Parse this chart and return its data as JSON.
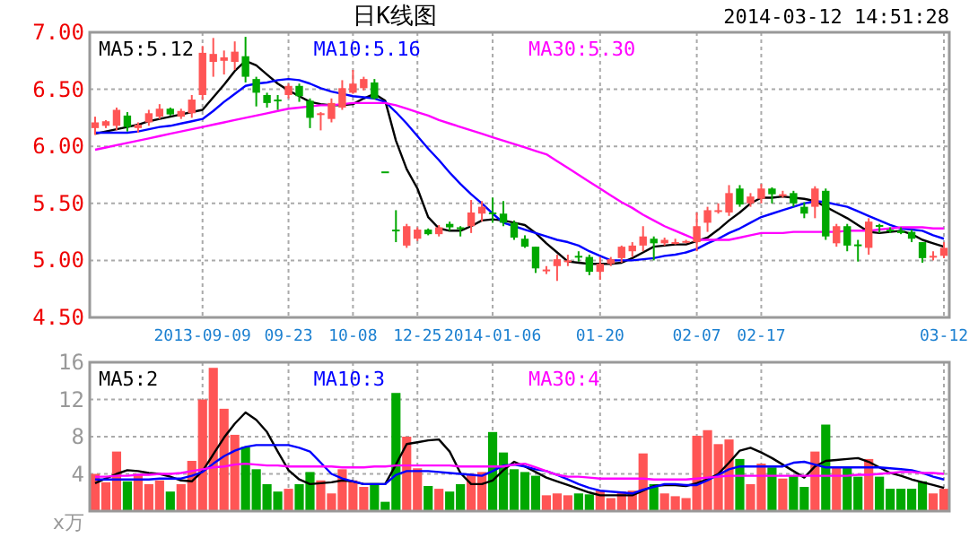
{
  "chart_data": [
    {
      "type": "candlestick",
      "title": "日K线图",
      "annotations": [
        "2014-03-12 14:51:28"
      ],
      "categories": [
        null,
        null,
        null,
        null,
        null,
        null,
        null,
        null,
        null,
        null,
        "2013-09-09",
        null,
        null,
        null,
        null,
        null,
        null,
        null,
        "09-23",
        null,
        null,
        null,
        null,
        null,
        "10-08",
        null,
        null,
        null,
        null,
        null,
        "12-25",
        null,
        null,
        null,
        null,
        null,
        null,
        "2014-01-06",
        null,
        null,
        null,
        null,
        null,
        null,
        null,
        null,
        null,
        "01-20",
        null,
        null,
        null,
        null,
        null,
        null,
        null,
        null,
        "02-07",
        null,
        null,
        null,
        null,
        null,
        "02-17",
        null,
        null,
        null,
        null,
        null,
        null,
        null,
        null,
        null,
        null,
        null,
        null,
        null,
        null,
        null,
        null,
        "03-12"
      ],
      "ohlc": [
        [
          6.16,
          6.26,
          6.1,
          6.21
        ],
        [
          6.18,
          6.23,
          6.16,
          6.22
        ],
        [
          6.18,
          6.34,
          6.14,
          6.32
        ],
        [
          6.27,
          6.3,
          6.13,
          6.17
        ],
        [
          6.16,
          6.21,
          6.12,
          6.19
        ],
        [
          6.21,
          6.32,
          6.18,
          6.29
        ],
        [
          6.26,
          6.37,
          6.24,
          6.33
        ],
        [
          6.33,
          6.34,
          6.27,
          6.28
        ],
        [
          6.26,
          6.33,
          6.24,
          6.31
        ],
        [
          6.29,
          6.45,
          6.25,
          6.41
        ],
        [
          6.45,
          6.88,
          6.41,
          6.82
        ],
        [
          6.74,
          6.95,
          6.61,
          6.81
        ],
        [
          6.75,
          6.84,
          6.63,
          6.78
        ],
        [
          6.74,
          6.92,
          6.67,
          6.83
        ],
        [
          6.79,
          6.96,
          6.56,
          6.61
        ],
        [
          6.59,
          6.61,
          6.35,
          6.47
        ],
        [
          6.45,
          6.47,
          6.34,
          6.38
        ],
        [
          6.41,
          6.45,
          6.32,
          6.4
        ],
        [
          6.45,
          6.55,
          6.42,
          6.53
        ],
        [
          6.53,
          6.55,
          6.39,
          6.44
        ],
        [
          6.4,
          6.42,
          6.16,
          6.25
        ],
        [
          6.28,
          6.3,
          6.14,
          6.29
        ],
        [
          6.24,
          6.42,
          6.21,
          6.38
        ],
        [
          6.34,
          6.58,
          6.32,
          6.51
        ],
        [
          6.47,
          6.67,
          6.46,
          6.55
        ],
        [
          6.51,
          6.61,
          6.49,
          6.59
        ],
        [
          6.56,
          6.59,
          6.41,
          6.42
        ],
        [
          5.78,
          5.78,
          5.78,
          5.78
        ],
        [
          5.27,
          5.44,
          5.16,
          5.26
        ],
        [
          5.13,
          5.32,
          5.11,
          5.3
        ],
        [
          5.19,
          5.29,
          5.17,
          5.27
        ],
        [
          5.27,
          5.28,
          5.22,
          5.23
        ],
        [
          5.23,
          5.31,
          5.21,
          5.29
        ],
        [
          5.32,
          5.34,
          5.26,
          5.29
        ],
        [
          5.29,
          5.3,
          5.21,
          5.28
        ],
        [
          5.3,
          5.53,
          5.24,
          5.42
        ],
        [
          5.41,
          5.52,
          5.34,
          5.47
        ],
        [
          5.42,
          5.55,
          5.33,
          5.41
        ],
        [
          5.41,
          5.52,
          5.3,
          5.33
        ],
        [
          5.33,
          5.35,
          5.18,
          5.2
        ],
        [
          5.19,
          5.22,
          5.11,
          5.12
        ],
        [
          5.12,
          5.12,
          4.89,
          4.93
        ],
        [
          4.91,
          4.95,
          4.88,
          4.92
        ],
        [
          4.95,
          5.05,
          4.82,
          5.01
        ],
        [
          4.99,
          5.05,
          4.95,
          5.0
        ],
        [
          5.04,
          5.08,
          4.99,
          5.03
        ],
        [
          5.03,
          5.05,
          4.87,
          4.9
        ],
        [
          4.9,
          5.03,
          4.83,
          4.97
        ],
        [
          4.97,
          5.03,
          4.95,
          5.01
        ],
        [
          5.02,
          5.13,
          4.98,
          5.12
        ],
        [
          5.08,
          5.16,
          5.03,
          5.13
        ],
        [
          5.13,
          5.3,
          5.08,
          5.21
        ],
        [
          5.19,
          5.21,
          5.0,
          5.15
        ],
        [
          5.15,
          5.2,
          5.13,
          5.18
        ],
        [
          5.15,
          5.19,
          5.14,
          5.16
        ],
        [
          5.16,
          5.18,
          5.15,
          5.17
        ],
        [
          5.16,
          5.42,
          5.08,
          5.3
        ],
        [
          5.33,
          5.47,
          5.25,
          5.44
        ],
        [
          5.43,
          5.5,
          5.41,
          5.44
        ],
        [
          5.42,
          5.66,
          5.39,
          5.59
        ],
        [
          5.63,
          5.66,
          5.47,
          5.49
        ],
        [
          5.5,
          5.59,
          5.47,
          5.56
        ],
        [
          5.54,
          5.67,
          5.5,
          5.63
        ],
        [
          5.63,
          5.64,
          5.5,
          5.58
        ],
        [
          5.57,
          5.61,
          5.55,
          5.58
        ],
        [
          5.59,
          5.61,
          5.47,
          5.5
        ],
        [
          5.47,
          5.51,
          5.37,
          5.41
        ],
        [
          5.47,
          5.65,
          5.37,
          5.63
        ],
        [
          5.61,
          5.63,
          5.18,
          5.21
        ],
        [
          5.15,
          5.32,
          5.12,
          5.3
        ],
        [
          5.3,
          5.32,
          5.08,
          5.13
        ],
        [
          5.14,
          5.18,
          4.99,
          5.13
        ],
        [
          5.11,
          5.37,
          5.05,
          5.34
        ],
        [
          5.31,
          5.32,
          5.24,
          5.3
        ],
        [
          5.27,
          5.29,
          5.24,
          5.26
        ],
        [
          5.26,
          5.29,
          5.23,
          5.24
        ],
        [
          5.25,
          5.27,
          5.16,
          5.19
        ],
        [
          5.16,
          5.16,
          4.98,
          5.02
        ],
        [
          5.03,
          5.08,
          5.0,
          5.04
        ],
        [
          5.04,
          5.16,
          5.02,
          5.11
        ]
      ],
      "colors": [
        "#ff5555",
        "#ff5555",
        "#ff5555",
        "#00a800",
        "#ff5555",
        "#ff5555",
        "#ff5555",
        "#00a800",
        "#ff5555",
        "#ff5555",
        "#ff5555",
        "#ff5555",
        "#ff5555",
        "#ff5555",
        "#00a800",
        "#00a800",
        "#00a800",
        "#00a800",
        "#ff5555",
        "#00a800",
        "#00a800",
        "#ff5555",
        "#ff5555",
        "#ff5555",
        "#ff5555",
        "#ff5555",
        "#00a800",
        "#00a800",
        "#00a800",
        "#ff5555",
        "#ff5555",
        "#00a800",
        "#ff5555",
        "#00a800",
        "#00a800",
        "#ff5555",
        "#ff5555",
        "#00a800",
        "#00a800",
        "#00a800",
        "#00a800",
        "#00a800",
        "#ff5555",
        "#ff5555",
        "#ff5555",
        "#00a800",
        "#00a800",
        "#ff5555",
        "#ff5555",
        "#ff5555",
        "#ff5555",
        "#ff5555",
        "#00a800",
        "#ff5555",
        "#ff5555",
        "#ff5555",
        "#ff5555",
        "#ff5555",
        "#ff5555",
        "#ff5555",
        "#00a800",
        "#ff5555",
        "#ff5555",
        "#00a800",
        "#ff5555",
        "#00a800",
        "#00a800",
        "#ff5555",
        "#00a800",
        "#ff5555",
        "#00a800",
        "#00a800",
        "#ff5555",
        "#00a800",
        "#00a800",
        "#00a800",
        "#00a800",
        "#00a800",
        "#ff5555",
        "#ff5555"
      ],
      "series": [
        {
          "type": "line",
          "name": "MA5:5.12",
          "color": "#000000",
          "values": [
            6.11,
            6.13,
            6.15,
            6.17,
            6.19,
            6.22,
            6.24,
            6.26,
            6.28,
            6.3,
            6.32,
            6.43,
            6.54,
            6.66,
            6.75,
            6.71,
            6.63,
            6.55,
            6.49,
            6.44,
            6.39,
            6.37,
            6.36,
            6.36,
            6.37,
            6.42,
            6.46,
            6.4,
            6.05,
            5.8,
            5.63,
            5.38,
            5.28,
            5.26,
            5.26,
            5.3,
            5.35,
            5.36,
            5.35,
            5.33,
            5.31,
            5.24,
            5.15,
            5.07,
            4.99,
            4.98,
            4.97,
            4.97,
            4.97,
            4.98,
            5.02,
            5.07,
            5.12,
            5.13,
            5.14,
            5.14,
            5.17,
            5.2,
            5.27,
            5.35,
            5.42,
            5.5,
            5.55,
            5.55,
            5.56,
            5.55,
            5.54,
            5.52,
            5.47,
            5.42,
            5.37,
            5.31,
            5.25,
            5.24,
            5.25,
            5.26,
            5.23,
            5.18,
            5.15,
            5.12
          ]
        },
        {
          "type": "line",
          "name": "MA10:5.16",
          "color": "#0000ff",
          "values": [
            6.12,
            6.12,
            6.12,
            6.12,
            6.13,
            6.15,
            6.17,
            6.18,
            6.2,
            6.22,
            6.24,
            6.31,
            6.39,
            6.46,
            6.53,
            6.55,
            6.56,
            6.58,
            6.59,
            6.58,
            6.55,
            6.51,
            6.48,
            6.46,
            6.44,
            6.43,
            6.42,
            6.39,
            6.3,
            6.2,
            6.09,
            5.98,
            5.88,
            5.77,
            5.67,
            5.58,
            5.5,
            5.41,
            5.33,
            5.3,
            5.27,
            5.24,
            5.21,
            5.18,
            5.16,
            5.13,
            5.08,
            5.04,
            5.0,
            5.0,
            5.0,
            5.01,
            5.02,
            5.04,
            5.05,
            5.07,
            5.1,
            5.15,
            5.19,
            5.24,
            5.28,
            5.33,
            5.38,
            5.41,
            5.44,
            5.47,
            5.5,
            5.52,
            5.51,
            5.49,
            5.47,
            5.43,
            5.39,
            5.35,
            5.31,
            5.28,
            5.27,
            5.26,
            5.22,
            5.19
          ]
        },
        {
          "type": "line",
          "name": "MA30:5.30",
          "color": "#ff00ff",
          "values": [
            5.97,
            5.99,
            6.01,
            6.03,
            6.05,
            6.07,
            6.09,
            6.11,
            6.13,
            6.15,
            6.17,
            6.19,
            6.21,
            6.23,
            6.25,
            6.27,
            6.29,
            6.31,
            6.33,
            6.34,
            6.35,
            6.36,
            6.36,
            6.37,
            6.38,
            6.38,
            6.38,
            6.38,
            6.36,
            6.33,
            6.3,
            6.27,
            6.23,
            6.2,
            6.17,
            6.14,
            6.11,
            6.08,
            6.05,
            6.02,
            5.99,
            5.96,
            5.93,
            5.87,
            5.81,
            5.75,
            5.69,
            5.63,
            5.57,
            5.51,
            5.46,
            5.4,
            5.35,
            5.3,
            5.26,
            5.22,
            5.18,
            5.18,
            5.18,
            5.18,
            5.2,
            5.22,
            5.24,
            5.24,
            5.24,
            5.25,
            5.25,
            5.25,
            5.25,
            5.25,
            5.26,
            5.26,
            5.26,
            5.27,
            5.28,
            5.29,
            5.29,
            5.29,
            5.28,
            5.28
          ]
        }
      ],
      "ylim": [
        4.5,
        7.0
      ],
      "yticks": [
        {
          "value": 4.5,
          "label": "4.50"
        },
        {
          "value": 5.0,
          "label": "5.00"
        },
        {
          "value": 5.5,
          "label": "5.50"
        },
        {
          "value": 6.0,
          "label": "6.00"
        },
        {
          "value": 6.5,
          "label": "6.50"
        },
        {
          "value": 7.0,
          "label": "7.00"
        }
      ],
      "grid": true,
      "legend": "top"
    },
    {
      "type": "bar",
      "ylabel": "x万",
      "tick_labels": "y",
      "categories": [
        null,
        null,
        null,
        null,
        null,
        null,
        null,
        null,
        null,
        null,
        null,
        null,
        null,
        null,
        null,
        null,
        null,
        null,
        null,
        null,
        null,
        null,
        null,
        null,
        null,
        null,
        null,
        null,
        null,
        null,
        null,
        null,
        null,
        null,
        null,
        null,
        null,
        null,
        null,
        null,
        null,
        null,
        null,
        null,
        null,
        null,
        null,
        null,
        null,
        null,
        null,
        null,
        null,
        null,
        null,
        null,
        null,
        null,
        null,
        null,
        null,
        null,
        null,
        null,
        null,
        null,
        null,
        null,
        null,
        null,
        null,
        null,
        null,
        null,
        null,
        null,
        null,
        null,
        null,
        null
      ],
      "values": [
        4.0,
        3.1,
        6.4,
        3.2,
        4.0,
        2.9,
        3.3,
        2.1,
        2.9,
        5.4,
        12.0,
        15.4,
        11.0,
        8.2,
        6.9,
        4.5,
        2.9,
        2.1,
        2.4,
        2.9,
        4.2,
        3.3,
        1.9,
        4.5,
        3.3,
        2.6,
        3.0,
        1.0,
        12.7,
        8.0,
        4.6,
        2.7,
        2.4,
        2.1,
        2.9,
        4.0,
        4.2,
        8.5,
        6.3,
        4.5,
        4.2,
        3.8,
        1.7,
        1.9,
        1.7,
        1.9,
        1.8,
        2.2,
        1.4,
        2.1,
        2.2,
        6.2,
        2.9,
        1.9,
        1.6,
        1.4,
        8.1,
        8.7,
        7.2,
        7.7,
        5.6,
        2.9,
        5.1,
        4.7,
        3.5,
        3.8,
        2.6,
        6.4,
        9.3,
        4.7,
        4.8,
        3.7,
        5.6,
        3.7,
        2.4,
        2.4,
        2.4,
        3.2,
        1.9,
        2.4
      ],
      "colors": [
        "#ff5555",
        "#ff5555",
        "#ff5555",
        "#00a800",
        "#ff5555",
        "#ff5555",
        "#ff5555",
        "#00a800",
        "#ff5555",
        "#ff5555",
        "#ff5555",
        "#ff5555",
        "#ff5555",
        "#ff5555",
        "#00a800",
        "#00a800",
        "#00a800",
        "#00a800",
        "#ff5555",
        "#00a800",
        "#00a800",
        "#ff5555",
        "#ff5555",
        "#ff5555",
        "#ff5555",
        "#ff5555",
        "#00a800",
        "#00a800",
        "#00a800",
        "#ff5555",
        "#ff5555",
        "#00a800",
        "#ff5555",
        "#00a800",
        "#00a800",
        "#ff5555",
        "#ff5555",
        "#00a800",
        "#00a800",
        "#00a800",
        "#00a800",
        "#00a800",
        "#ff5555",
        "#ff5555",
        "#ff5555",
        "#00a800",
        "#00a800",
        "#ff5555",
        "#ff5555",
        "#ff5555",
        "#ff5555",
        "#ff5555",
        "#00a800",
        "#ff5555",
        "#ff5555",
        "#ff5555",
        "#ff5555",
        "#ff5555",
        "#ff5555",
        "#ff5555",
        "#00a800",
        "#ff5555",
        "#ff5555",
        "#00a800",
        "#ff5555",
        "#00a800",
        "#00a800",
        "#ff5555",
        "#00a800",
        "#ff5555",
        "#00a800",
        "#00a800",
        "#ff5555",
        "#00a800",
        "#00a800",
        "#00a800",
        "#00a800",
        "#00a800",
        "#ff5555",
        "#ff5555"
      ],
      "series": [
        {
          "type": "line",
          "name": "MA5:2",
          "color": "#000000",
          "values": [
            3.0,
            3.5,
            4.0,
            4.4,
            4.3,
            4.1,
            4.0,
            3.7,
            3.3,
            3.2,
            4.3,
            6.1,
            7.9,
            9.4,
            10.6,
            9.8,
            8.5,
            6.4,
            4.4,
            3.4,
            2.9,
            3.0,
            3.1,
            3.3,
            3.2,
            2.9,
            2.9,
            2.9,
            5.0,
            7.2,
            7.4,
            7.6,
            7.7,
            6.4,
            4.1,
            2.9,
            2.9,
            3.3,
            4.4,
            5.3,
            4.8,
            4.2,
            3.6,
            3.2,
            2.8,
            2.4,
            2.0,
            1.7,
            1.7,
            1.7,
            1.7,
            2.2,
            2.7,
            2.8,
            2.8,
            2.7,
            3.0,
            3.4,
            4.0,
            5.2,
            6.5,
            6.8,
            6.3,
            5.7,
            5.0,
            4.3,
            3.6,
            4.8,
            5.4,
            5.5,
            5.6,
            5.7,
            5.3,
            4.7,
            4.1,
            3.8,
            3.4,
            3.1,
            2.8,
            2.5
          ]
        },
        {
          "type": "line",
          "name": "MA10:3",
          "color": "#0000ff",
          "values": [
            3.4,
            3.4,
            3.4,
            3.4,
            3.4,
            3.4,
            3.5,
            3.5,
            3.5,
            3.8,
            4.2,
            5.1,
            5.9,
            6.5,
            6.9,
            7.1,
            7.1,
            7.1,
            7.1,
            6.8,
            6.4,
            5.2,
            4.0,
            3.5,
            3.2,
            2.9,
            2.9,
            2.9,
            3.9,
            4.3,
            4.3,
            4.3,
            4.2,
            4.1,
            4.0,
            3.9,
            3.8,
            4.3,
            4.9,
            5.0,
            4.8,
            4.5,
            4.3,
            3.9,
            3.4,
            2.9,
            2.5,
            2.2,
            2.1,
            2.0,
            1.9,
            2.3,
            2.6,
            2.9,
            2.9,
            2.8,
            2.8,
            3.3,
            3.9,
            4.5,
            4.8,
            4.8,
            4.8,
            4.8,
            4.8,
            5.2,
            5.3,
            5.0,
            4.7,
            4.7,
            4.7,
            4.7,
            4.7,
            4.7,
            4.6,
            4.5,
            4.4,
            4.1,
            3.7,
            3.4
          ]
        },
        {
          "type": "line",
          "name": "MA30:4",
          "color": "#ff00ff",
          "values": [
            3.7,
            3.7,
            3.8,
            3.8,
            3.9,
            3.9,
            4.0,
            4.0,
            4.1,
            4.3,
            4.5,
            4.7,
            4.8,
            5.0,
            5.1,
            5.0,
            4.9,
            4.9,
            4.8,
            4.8,
            4.8,
            4.8,
            4.8,
            4.7,
            4.7,
            4.7,
            4.8,
            4.8,
            4.9,
            4.9,
            4.9,
            4.9,
            4.9,
            4.9,
            4.8,
            4.8,
            4.8,
            4.8,
            4.8,
            5.0,
            5.1,
            4.7,
            4.3,
            3.9,
            3.7,
            3.7,
            3.6,
            3.5,
            3.5,
            3.5,
            3.5,
            3.5,
            3.4,
            3.4,
            3.4,
            3.4,
            3.5,
            3.6,
            3.7,
            3.8,
            3.8,
            3.8,
            3.8,
            3.8,
            3.8,
            3.8,
            3.8,
            3.8,
            3.8,
            3.8,
            3.8,
            3.9,
            3.9,
            4.0,
            4.1,
            4.2,
            4.2,
            4.1,
            4.1,
            4.0
          ]
        }
      ],
      "ylim": [
        0,
        16
      ],
      "yticks": [
        {
          "value": 0,
          "label": null
        },
        4,
        8,
        12,
        16
      ],
      "grid": true,
      "legend": "top"
    }
  ]
}
